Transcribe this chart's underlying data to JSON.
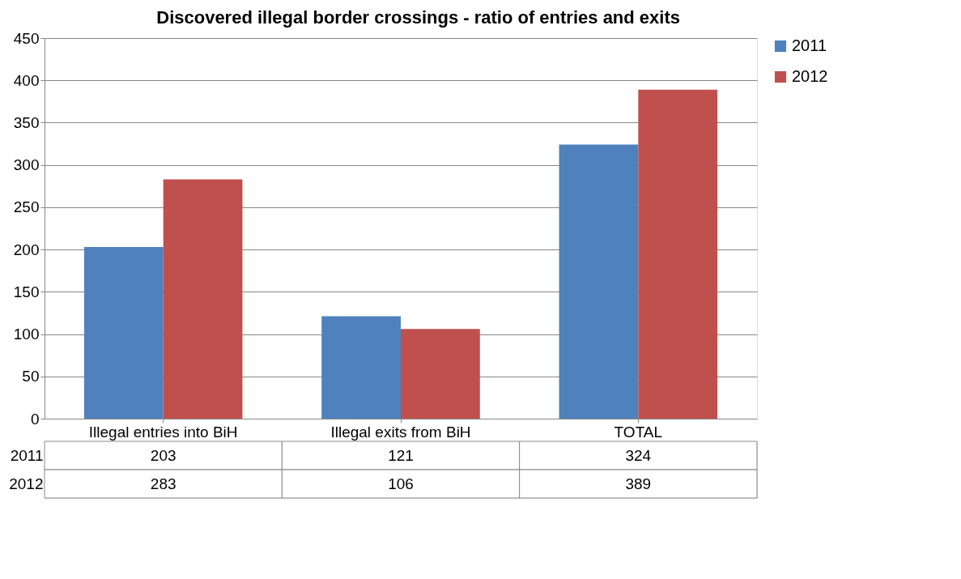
{
  "chart_data": {
    "type": "bar",
    "title": "Discovered illegal border crossings - ratio of entries and exits",
    "categories": [
      "Illegal entries into BiH",
      "Illegal exits from BiH",
      "TOTAL"
    ],
    "series": [
      {
        "name": "2011",
        "color": "#4f81bd",
        "values": [
          203,
          121,
          324
        ]
      },
      {
        "name": "2012",
        "color": "#c0504d",
        "values": [
          283,
          106,
          389
        ]
      }
    ],
    "ylim": [
      0,
      450
    ],
    "yticks": [
      0,
      50,
      100,
      150,
      200,
      250,
      300,
      350,
      400,
      450
    ],
    "grid": "y",
    "legend": "right",
    "data_labels": true
  }
}
